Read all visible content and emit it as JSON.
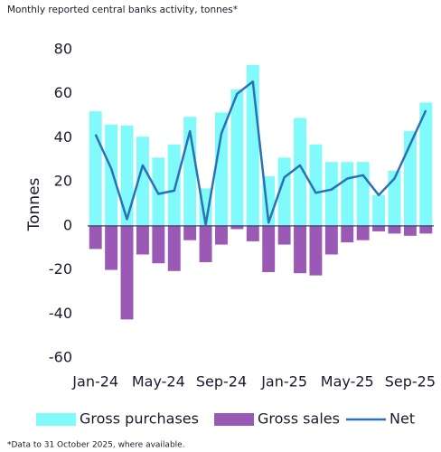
{
  "chart_data": {
    "type": "bar",
    "title": "Monthly reported central banks activity, tonnes*",
    "footnote": "*Data to 31 October 2025, where available.",
    "y_label": "Tonnes",
    "categories": [
      "Jan-24",
      null,
      null,
      null,
      "May-24",
      null,
      null,
      null,
      "Sep-24",
      null,
      null,
      null,
      "Jan-25",
      null,
      null,
      null,
      "May-25",
      null,
      null,
      null,
      "Sep-25",
      null
    ],
    "series": [
      {
        "name": "Gross purchases",
        "kind": "bar",
        "color": "#80fafa",
        "values": [
          52,
          46,
          45.5,
          40.5,
          31,
          37,
          49.5,
          17,
          51.5,
          62,
          73,
          22.5,
          31,
          49,
          37,
          29,
          29,
          29,
          14,
          25,
          43,
          56
        ]
      },
      {
        "name": "Gross sales",
        "kind": "bar",
        "color": "#9b59b6",
        "values": [
          -10.5,
          -20,
          -42.5,
          -13,
          -17,
          -20.5,
          -6.5,
          -16.5,
          -8.5,
          -1.5,
          -7,
          -21,
          -8.5,
          -21.5,
          -22.5,
          -13,
          -7.5,
          -6.5,
          -2.5,
          -3.5,
          -4.5,
          -3.5
        ]
      },
      {
        "name": "Net",
        "kind": "line",
        "color": "#2a72b5",
        "values": [
          41.5,
          26,
          3,
          27.5,
          14.5,
          16,
          43,
          0.5,
          42,
          60,
          65.5,
          1.5,
          22,
          27.5,
          15,
          16.5,
          21.5,
          23,
          14,
          21.5,
          37,
          52.5
        ]
      }
    ],
    "ylim": [
      -60,
      80
    ],
    "yticks": [
      -60,
      -40,
      -20,
      0,
      20,
      40,
      60,
      80
    ]
  }
}
